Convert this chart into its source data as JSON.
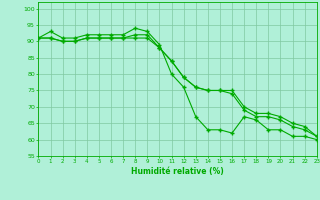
{
  "xlabel": "Humidité relative (%)",
  "bg_color": "#b0f0d8",
  "grid_color": "#80c8a0",
  "line_color": "#00aa00",
  "xlim": [
    0,
    23
  ],
  "ylim": [
    55,
    102
  ],
  "yticks": [
    55,
    60,
    65,
    70,
    75,
    80,
    85,
    90,
    95,
    100
  ],
  "xticks": [
    0,
    1,
    2,
    3,
    4,
    5,
    6,
    7,
    8,
    9,
    10,
    11,
    12,
    13,
    14,
    15,
    16,
    17,
    18,
    19,
    20,
    21,
    22,
    23
  ],
  "line1_x": [
    0,
    1,
    2,
    3,
    4,
    5,
    6,
    7,
    8,
    9,
    10,
    11,
    12,
    13,
    14,
    15,
    16,
    17,
    18,
    19,
    20,
    21,
    22,
    23
  ],
  "line1_y": [
    91,
    93,
    91,
    91,
    92,
    92,
    92,
    92,
    94,
    93,
    89,
    80,
    76,
    67,
    63,
    63,
    62,
    67,
    66,
    63,
    63,
    61,
    61,
    60
  ],
  "line2_x": [
    0,
    1,
    2,
    3,
    4,
    5,
    6,
    7,
    8,
    9,
    10,
    11,
    12,
    13,
    14,
    15,
    16,
    17,
    18,
    19,
    20,
    21,
    22,
    23
  ],
  "line2_y": [
    91,
    91,
    90,
    90,
    91,
    91,
    91,
    91,
    91,
    91,
    88,
    84,
    79,
    76,
    75,
    75,
    75,
    70,
    68,
    68,
    67,
    65,
    64,
    61
  ],
  "line3_x": [
    0,
    1,
    2,
    3,
    4,
    5,
    6,
    7,
    8,
    9,
    10,
    11,
    12,
    13,
    14,
    15,
    16,
    17,
    18,
    19,
    20,
    21,
    22,
    23
  ],
  "line3_y": [
    91,
    91,
    90,
    90,
    91,
    91,
    91,
    91,
    92,
    92,
    88,
    84,
    79,
    76,
    75,
    75,
    74,
    69,
    67,
    67,
    66,
    64,
    63,
    61
  ]
}
